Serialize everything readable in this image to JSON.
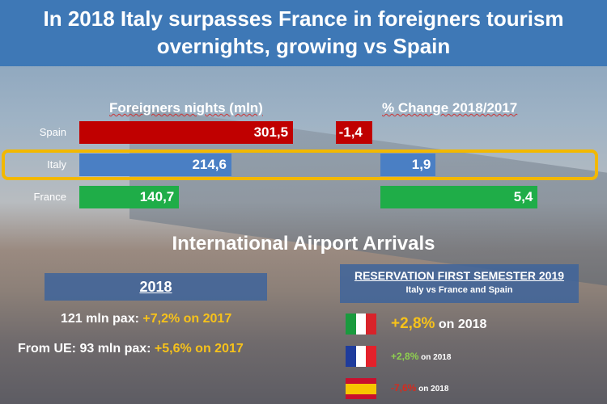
{
  "title_line1": "In 2018 Italy surpasses France in foreigners tourism",
  "title_line2": "overnights,  growing vs Spain",
  "chart_data": {
    "type": "bar",
    "categories": [
      "Spain",
      "Italy",
      "France"
    ],
    "series": [
      {
        "name": "Foreigners nights (mln)",
        "values": [
          301.5,
          214.6,
          140.7
        ],
        "labels": [
          "301,5",
          "214,6",
          "140,7"
        ]
      },
      {
        "name": "% Change 2018/2017",
        "values": [
          -1.4,
          1.9,
          5.4
        ],
        "labels": [
          "-1,4",
          "1,9",
          "5,4"
        ]
      }
    ],
    "colors": [
      "#c00000",
      "#4a7fc4",
      "#1fad48"
    ],
    "highlight": "Italy"
  },
  "headers": {
    "nights": "Foreigners nights (mln)",
    "change": "% Change 2018/2017"
  },
  "airport": {
    "title": "International Airport Arrivals",
    "year": "2018",
    "line1_a": "121 mln pax: ",
    "line1_b": "+7,2% on 2017",
    "line2_a": "From UE: 93 mln pax: ",
    "line2_b": "+5,6% on 2017"
  },
  "reservation": {
    "title": "RESERVATION FIRST SEMESTER 2019",
    "subtitle": "Italy vs France and Spain",
    "items": [
      {
        "country": "Italy",
        "value": "+2,8%",
        "suffix": " on 2018"
      },
      {
        "country": "France",
        "value": "+2,8%",
        "suffix": " on 2018"
      },
      {
        "country": "Spain",
        "value": "-7,6%",
        "suffix": " on 2018"
      }
    ]
  }
}
